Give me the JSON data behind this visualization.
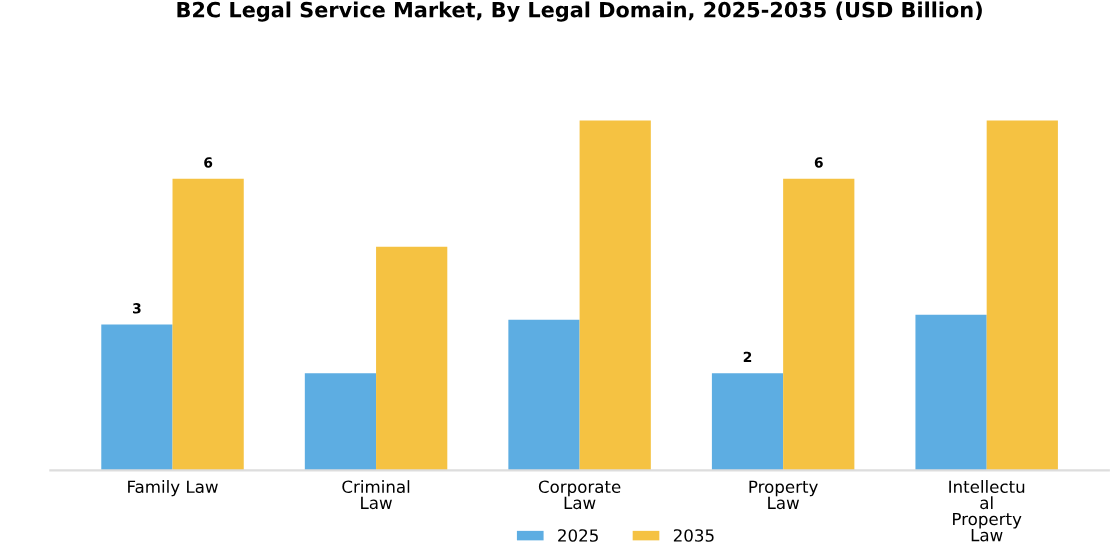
{
  "chart_data": {
    "type": "bar",
    "title": "B2C Legal Service Market, By Legal Domain, 2025-2035 (USD Billion)",
    "tick_labels": "x",
    "categories": [
      "Family Law",
      "Criminal\nLaw",
      "Corporate\nLaw",
      "Property\nLaw",
      "Intellectu\nal\nProperty\nLaw"
    ],
    "series": [
      {
        "name": "2025",
        "color": "#5dade2",
        "values": [
          3,
          2,
          3.1,
          2,
          3.2
        ],
        "value_labels": [
          "3",
          null,
          null,
          "2",
          null
        ]
      },
      {
        "name": "2035",
        "color": "#f5c242",
        "values": [
          6,
          4.6,
          7.2,
          6,
          7.2
        ],
        "value_labels": [
          "6",
          null,
          null,
          "6",
          null
        ]
      }
    ],
    "legend": "bottom",
    "grid": false
  }
}
